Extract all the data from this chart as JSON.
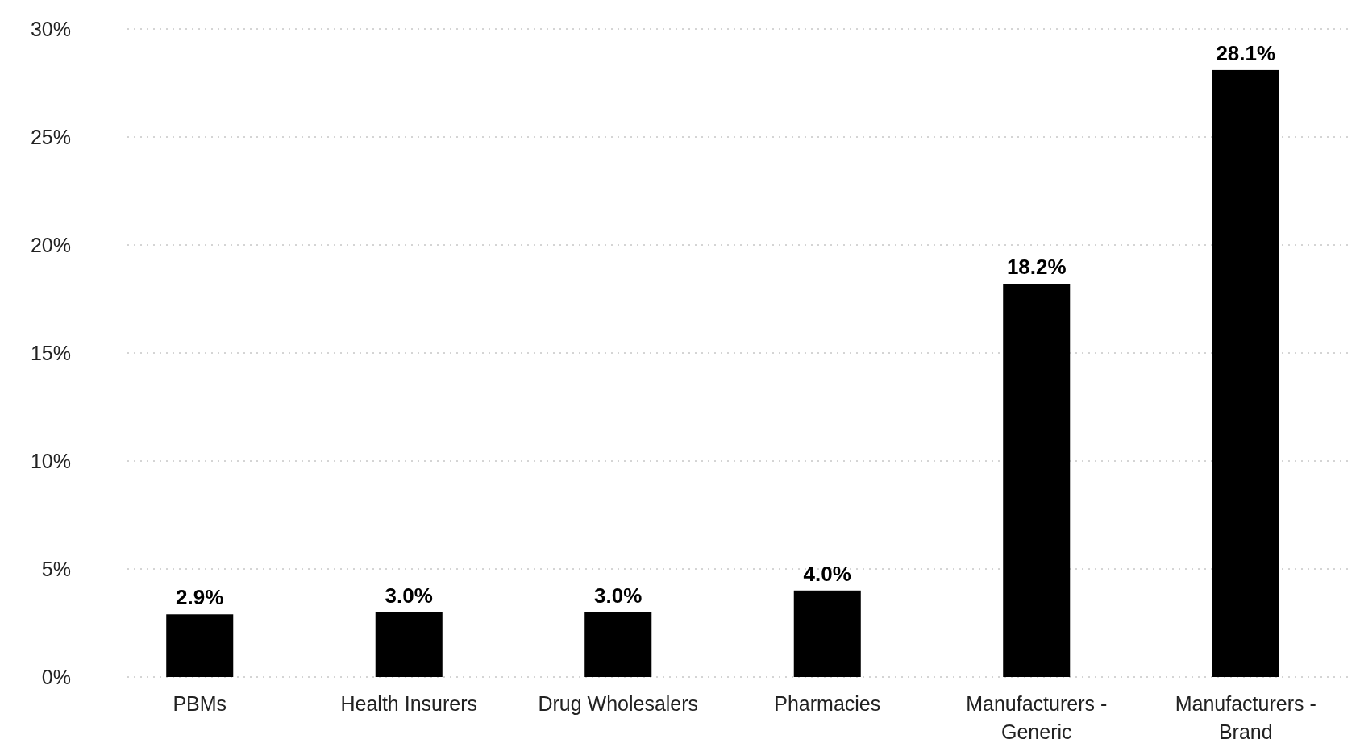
{
  "chart_data": {
    "type": "bar",
    "categories": [
      "PBMs",
      "Health Insurers",
      "Drug Wholesalers",
      "Pharmacies",
      "Manufacturers - Generic",
      "Manufacturers - Brand"
    ],
    "values": [
      2.9,
      3.0,
      3.0,
      4.0,
      18.2,
      28.1
    ],
    "value_labels": [
      "2.9%",
      "3.0%",
      "3.0%",
      "4.0%",
      "18.2%",
      "28.1%"
    ],
    "color": "#000000",
    "ylim": [
      0,
      30
    ],
    "yticks": [
      {
        "value": 0,
        "label": "0%"
      },
      {
        "value": 5,
        "label": "5%"
      },
      {
        "value": 10,
        "label": "10%"
      },
      {
        "value": 15,
        "label": "15%"
      },
      {
        "value": 20,
        "label": "20%"
      },
      {
        "value": 25,
        "label": "25%"
      },
      {
        "value": 30,
        "label": "30%"
      }
    ],
    "grid": "y"
  }
}
